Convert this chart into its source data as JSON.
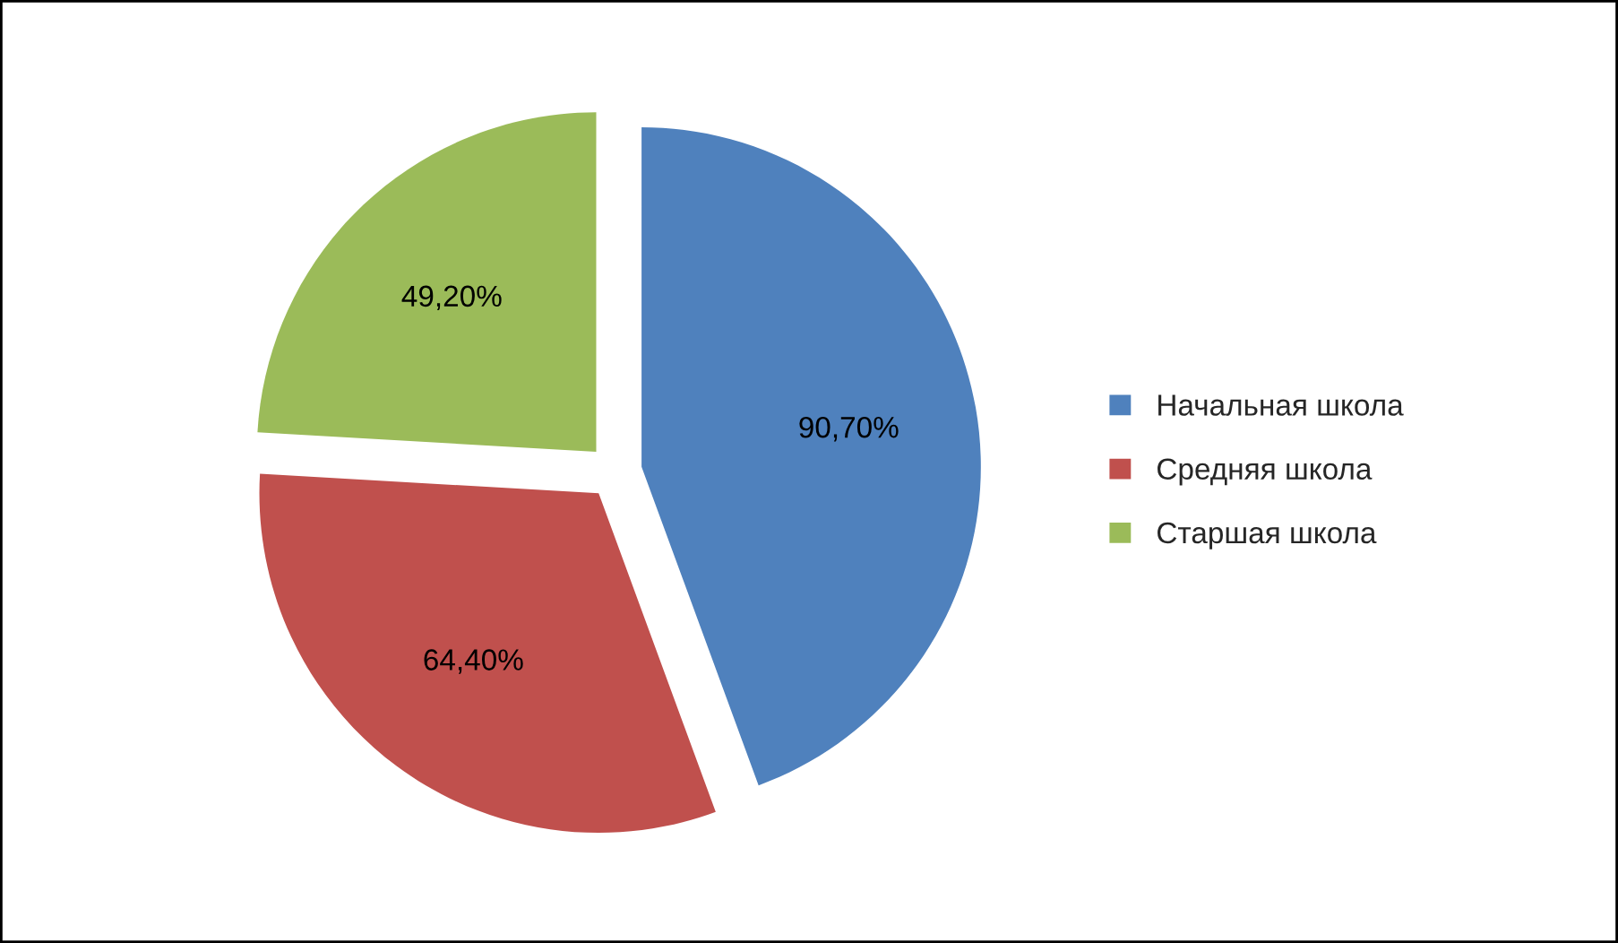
{
  "chart_data": {
    "type": "pie",
    "categories": [
      "Начальная школа",
      "Средняя школа",
      "Старшая школа"
    ],
    "values": [
      90.7,
      64.4,
      49.2
    ],
    "colors": [
      "#4f81bd",
      "#c0504d",
      "#9bbb59"
    ],
    "value_labels": [
      "90,70%",
      "64,40%",
      "49,20%"
    ],
    "legend": "right"
  }
}
